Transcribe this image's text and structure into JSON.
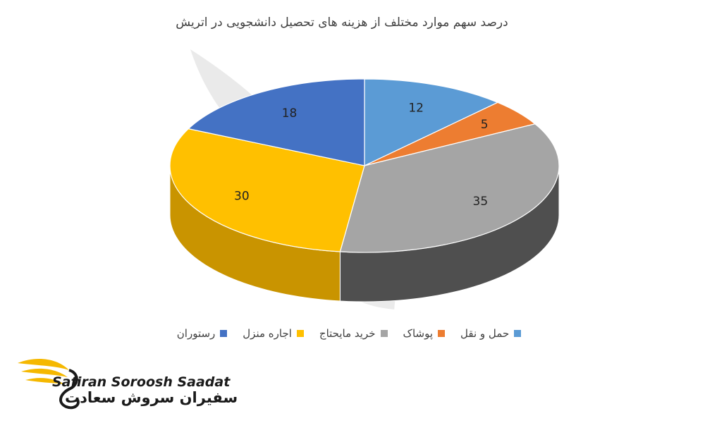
{
  "chart_data": {
    "type": "pie",
    "title": "درصد سهم موارد مختلف از هزینه های تحصیل دانشجویی در اتریش",
    "categories": [
      "حمل و نقل",
      "پوشاک",
      "خرید مایحتاج",
      "اجاره منزل",
      "رستوران"
    ],
    "values": [
      12,
      5,
      35,
      30,
      18
    ],
    "colors": [
      "#5b9bd5",
      "#ed7d31",
      "#a5a5a5",
      "#ffc000",
      "#4472c4"
    ],
    "side_colors": [
      "#3f78ad",
      "#b85a1c",
      "#4f4f4f",
      "#c99400",
      "#2f549a"
    ],
    "legend_position": "bottom",
    "three_d": true
  },
  "logo": {
    "name_en": "Safiran Soroosh Saadat",
    "name_fa": "سفیران سروش سعادت",
    "color": "#f5b800"
  }
}
